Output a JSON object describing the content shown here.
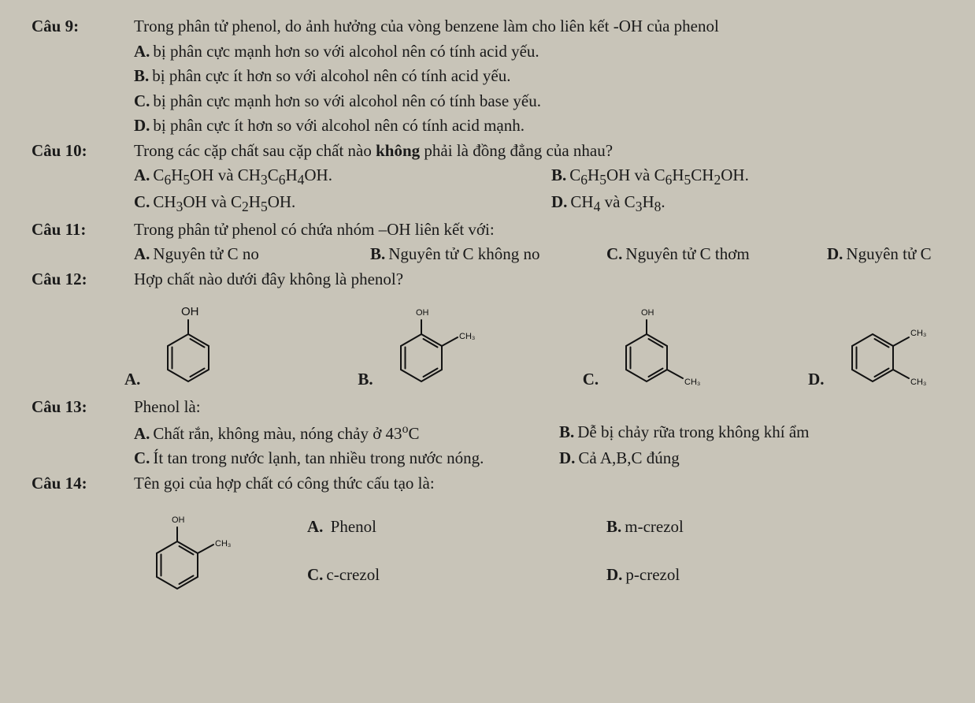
{
  "q9": {
    "label": "Câu 9:",
    "stem": "Trong phân tử phenol, do ảnh hưởng của vòng benzene làm cho liên kết -OH của phenol",
    "A": "bị phân cực mạnh hơn so với alcohol nên có tính acid yếu.",
    "B": "bị phân cực ít hơn so với alcohol nên có tính acid yếu.",
    "C": "bị phân cực mạnh hơn so với alcohol nên có tính base yếu.",
    "D": "bị phân cực ít hơn so với alcohol nên có tính acid mạnh."
  },
  "q10": {
    "label": "Câu 10:",
    "stem_pre": "Trong các cặp chất sau cặp chất nào ",
    "stem_bold": "không",
    "stem_post": " phải là đồng đẳng của nhau?",
    "A_html": "C<sub>6</sub>H<sub>5</sub>OH và CH<sub>3</sub>C<sub>6</sub>H<sub>4</sub>OH.",
    "B_html": "C<sub>6</sub>H<sub>5</sub>OH và C<sub>6</sub>H<sub>5</sub>CH<sub>2</sub>OH.",
    "C_html": "CH<sub>3</sub>OH và C<sub>2</sub>H<sub>5</sub>OH.",
    "D_html": "CH<sub>4</sub> và C<sub>3</sub>H<sub>8</sub>."
  },
  "q11": {
    "label": "Câu 11:",
    "stem": "Trong phân tử phenol có chứa nhóm –OH liên kết với:",
    "A": "Nguyên tử C no",
    "B": "Nguyên tử C không no",
    "C": "Nguyên tử C thơm",
    "D": "Nguyên tử C"
  },
  "q12": {
    "label": "Câu 12:",
    "stem": "Hợp chất nào dưới đây không là phenol?",
    "labels": {
      "oh": "OH",
      "ch3": "CH₃",
      "ch3b": "CH₃"
    },
    "A": {
      "type": "benzene-OH",
      "top_label": "OH"
    },
    "B": {
      "type": "benzene-OH-oCH3",
      "top_label": "OH",
      "ortho_label": "CH₃"
    },
    "C": {
      "type": "benzene-OH-mCH3",
      "top_label": "OH",
      "meta_label": "CH₃"
    },
    "D": {
      "type": "benzene-CH3-mCH3",
      "top_label": "CH₃",
      "meta_label": "CH₃"
    }
  },
  "q13": {
    "label": "Câu 13:",
    "stem": "Phenol là:",
    "A_pre": "Chất rắn, không màu, nóng chảy ở 43",
    "A_post": "C",
    "B": "Dễ bị chảy rữa trong không khí ẩm",
    "C": "Ít tan trong nước lạnh, tan nhiều trong nước nóng.",
    "D": "Cả A,B,C đúng"
  },
  "q14": {
    "label": "Câu 14:",
    "stem": "Tên gọi của hợp chất có công thức cấu tạo là:",
    "mol": {
      "type": "benzene-OH-oCH3",
      "top_label": "OH",
      "ortho_label": "CH₃"
    },
    "A": "Phenol",
    "B": "m-crezol",
    "C": "c-crezol",
    "D": "p-crezol"
  },
  "letters": {
    "A": "A.",
    "B": "B.",
    "C": "C.",
    "D": "D."
  }
}
